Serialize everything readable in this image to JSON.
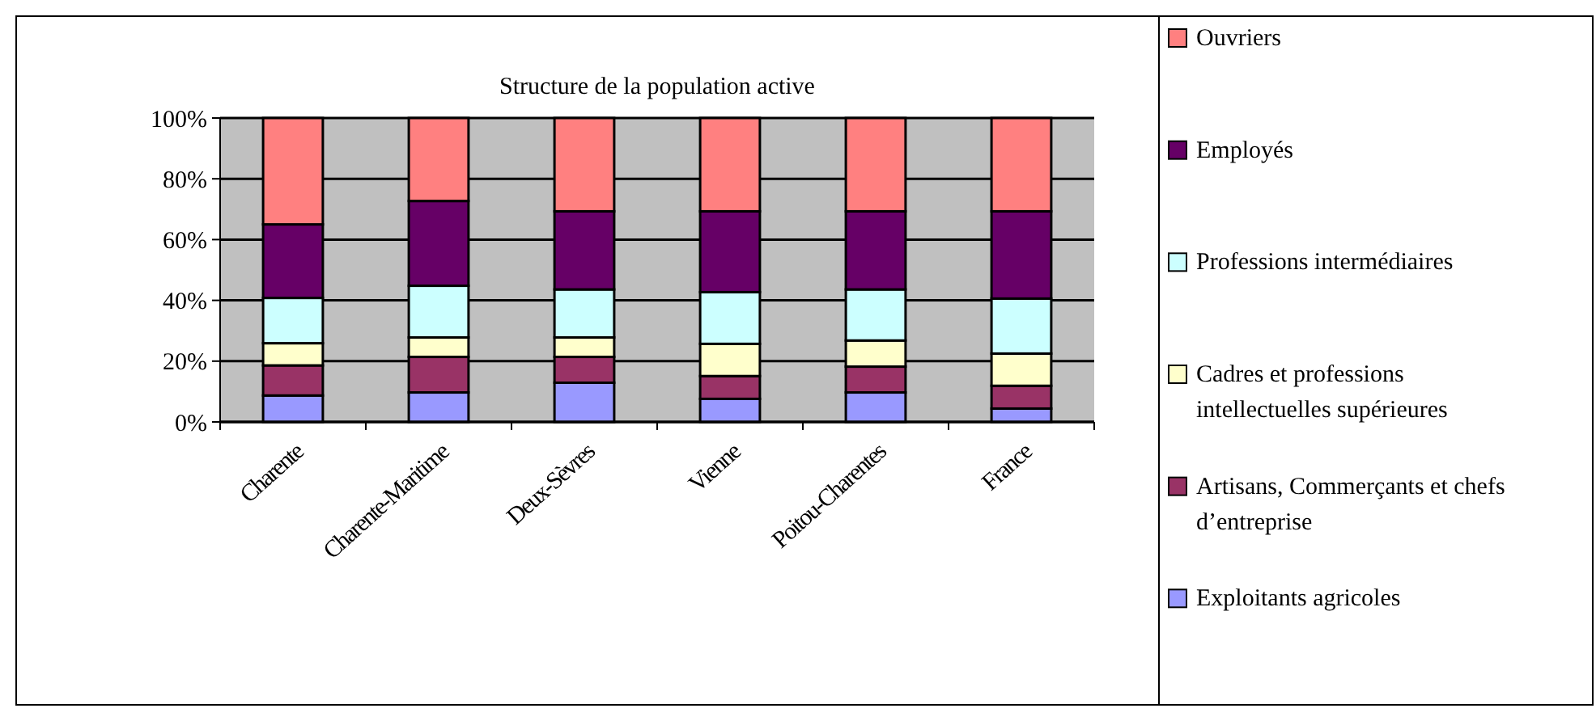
{
  "chart_data": {
    "type": "bar",
    "title": "Structure de la population active",
    "stacked": true,
    "categories": [
      "Charente",
      "Charente-Maritime",
      "Deux-Sèvres",
      "Vienne",
      "Poitou-Charentes",
      "France"
    ],
    "series": [
      {
        "name": "Exploitants agricoles",
        "color": "#9999ff",
        "values": [
          8.7,
          9.7,
          12.9,
          7.6,
          9.7,
          4.4
        ]
      },
      {
        "name": "Artisans, Commerçants et chefs d’entreprise",
        "color": "#993366",
        "values": [
          9.9,
          11.7,
          8.5,
          7.5,
          8.5,
          7.5
        ]
      },
      {
        "name": "Cadres et professions intellectuelles supérieures",
        "color": "#ffffcc",
        "values": [
          7.3,
          6.4,
          6.4,
          10.6,
          8.6,
          10.6
        ]
      },
      {
        "name": "Professions intermédiaires",
        "color": "#ccffff",
        "values": [
          14.9,
          17,
          15.8,
          17,
          16.8,
          18.1
        ]
      },
      {
        "name": "Employés",
        "color": "#660066",
        "values": [
          24.2,
          27.9,
          25.7,
          26.6,
          25.7,
          28.7
        ]
      },
      {
        "name": "Ouvriers",
        "color": "#ff8080",
        "values": [
          35,
          27.3,
          30.7,
          30.7,
          30.7,
          30.7
        ]
      }
    ],
    "ylim": [
      0,
      100
    ],
    "yticks": [
      {
        "value": 0,
        "label": "0%"
      },
      {
        "value": 20,
        "label": "20%"
      },
      {
        "value": 40,
        "label": "40%"
      },
      {
        "value": 60,
        "label": "60%"
      },
      {
        "value": 80,
        "label": "80%"
      },
      {
        "value": 100,
        "label": "100%"
      }
    ],
    "grid": "y",
    "legend": "right"
  }
}
